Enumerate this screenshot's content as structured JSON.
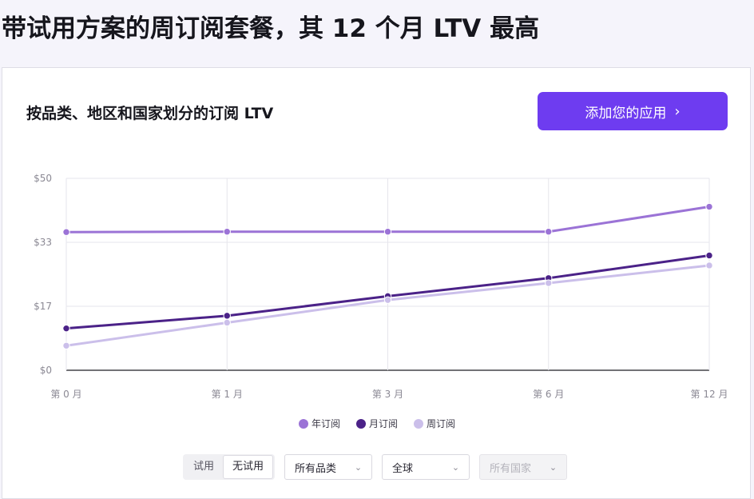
{
  "headline": "带试用方案的周订阅套餐，其 12 个月 LTV 最高",
  "card": {
    "title": "按品类、地区和国家划分的订阅 LTV",
    "add_app_button": "添加您的应用",
    "add_app_chevron": "›"
  },
  "filters": {
    "trial_options": [
      "试用",
      "无试用"
    ],
    "trial_selected": "无试用",
    "category_select": "所有品类",
    "region_select": "全球",
    "country_select": "所有国家",
    "caret": "⌄"
  },
  "colors": {
    "accent": "#6e3cf0",
    "annual": "#9b73d6",
    "monthly": "#4b2288",
    "weekly": "#cbbfea"
  },
  "chart_data": {
    "type": "line",
    "title": "",
    "xlabel": "",
    "ylabel": "",
    "categories": [
      "第 0 月",
      "第 1 月",
      "第 3 月",
      "第 6 月",
      "第 12 月"
    ],
    "y_ticks": [
      "$0",
      "$17",
      "$33",
      "$50"
    ],
    "y_tick_values": [
      0,
      16.67,
      33.33,
      50
    ],
    "ylim": [
      0,
      50
    ],
    "grid": true,
    "legend_position": "bottom-center",
    "series": [
      {
        "name": "年订阅",
        "color": "#9b73d6",
        "values": [
          36.0,
          36.1,
          36.1,
          36.1,
          42.6
        ]
      },
      {
        "name": "月订阅",
        "color": "#4b2288",
        "values": [
          10.9,
          14.2,
          19.3,
          24.0,
          29.9
        ]
      },
      {
        "name": "周订阅",
        "color": "#cbbfea",
        "values": [
          6.4,
          12.4,
          18.3,
          22.7,
          27.3
        ]
      }
    ]
  }
}
